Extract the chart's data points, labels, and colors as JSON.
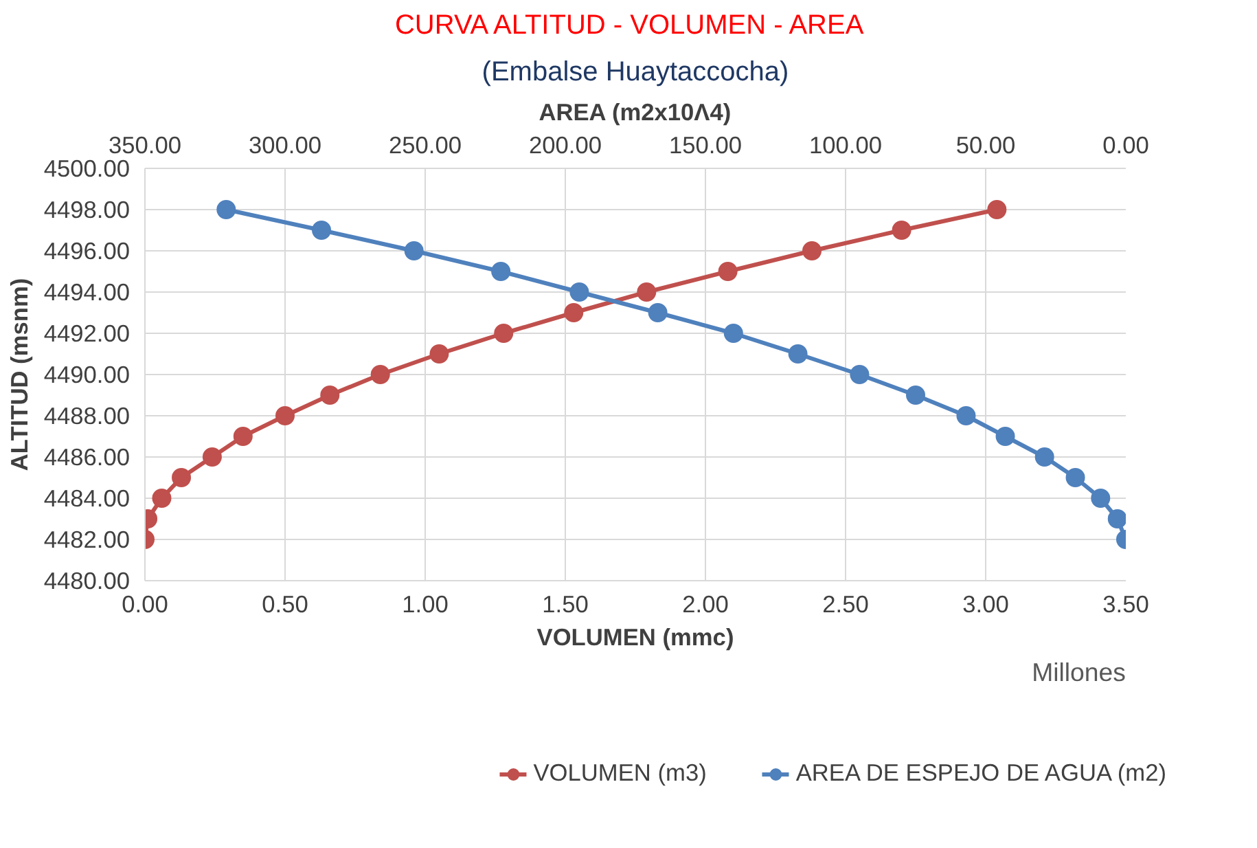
{
  "chart_data": {
    "type": "line",
    "title": "CURVA ALTITUD - VOLUMEN  - AREA",
    "subtitle": "(Embalse Huaytaccocha)",
    "xlabel": "VOLUMEN (mmc)",
    "x2label": "AREA (m2x10Λ4)",
    "ylabel": "ALTITUD (msnm)",
    "annotations": [
      "Millones"
    ],
    "series": [
      {
        "name": "VOLUMEN (m3)",
        "color": "#c0504d",
        "x": [
          0,
          0.01,
          0.06,
          0.13,
          0.24,
          0.35,
          0.5,
          0.66,
          0.84,
          1.05,
          1.28,
          1.53,
          1.79,
          2.08,
          2.38,
          2.7,
          3.04
        ],
        "values": [
          4482,
          4483,
          4484,
          4485,
          4486,
          4487,
          4488,
          4489,
          4490,
          4491,
          4492,
          4493,
          4494,
          4495,
          4496,
          4497,
          4498
        ]
      },
      {
        "name": "AREA DE ESPEJO DE AGUA (m2)",
        "color": "#4f81bd",
        "axis": "x2",
        "x": [
          0,
          3,
          9,
          18,
          29,
          43,
          57,
          75,
          95,
          117,
          140,
          167,
          195,
          223,
          254,
          287,
          321
        ],
        "values": [
          4482,
          4483,
          4484,
          4485,
          4486,
          4487,
          4488,
          4489,
          4490,
          4491,
          4492,
          4493,
          4494,
          4495,
          4496,
          4497,
          4498
        ]
      }
    ],
    "xlim": [
      0,
      3.5
    ],
    "xticks": [
      {
        "value": 0,
        "label": "0.00"
      },
      {
        "value": 0.5,
        "label": "0.50"
      },
      {
        "value": 1,
        "label": "1.00"
      },
      {
        "value": 1.5,
        "label": "1.50"
      },
      {
        "value": 2,
        "label": "2.00"
      },
      {
        "value": 2.5,
        "label": "2.50"
      },
      {
        "value": 3,
        "label": "3.00"
      },
      {
        "value": 3.5,
        "label": "3.50"
      }
    ],
    "x2lim": [
      350,
      0
    ],
    "x2ticks": [
      {
        "value": 350,
        "label": "350.00"
      },
      {
        "value": 300,
        "label": "300.00"
      },
      {
        "value": 250,
        "label": "250.00"
      },
      {
        "value": 200,
        "label": "200.00"
      },
      {
        "value": 150,
        "label": "150.00"
      },
      {
        "value": 100,
        "label": "100.00"
      },
      {
        "value": 50,
        "label": "50.00"
      },
      {
        "value": 0,
        "label": "0.00"
      }
    ],
    "ylim": [
      4480,
      4500
    ],
    "yticks": [
      {
        "value": 4480,
        "label": "4480.00"
      },
      {
        "value": 4482,
        "label": "4482.00"
      },
      {
        "value": 4484,
        "label": "4484.00"
      },
      {
        "value": 4486,
        "label": "4486.00"
      },
      {
        "value": 4488,
        "label": "4488.00"
      },
      {
        "value": 4490,
        "label": "4490.00"
      },
      {
        "value": 4492,
        "label": "4492.00"
      },
      {
        "value": 4494,
        "label": "4494.00"
      },
      {
        "value": 4496,
        "label": "4496.00"
      },
      {
        "value": 4498,
        "label": "4498.00"
      },
      {
        "value": 4500,
        "label": "4500.00"
      }
    ],
    "grid": true,
    "legend": "bottom",
    "marker": "circle",
    "line_style": "solid"
  }
}
